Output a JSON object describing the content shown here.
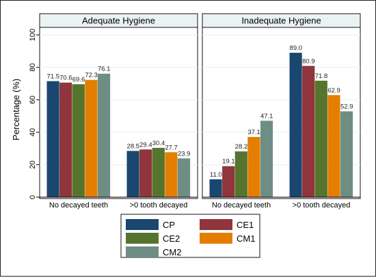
{
  "chart_data": {
    "type": "bar",
    "ylabel": "Percentage (%)",
    "ylim": [
      0,
      100
    ],
    "yticks": [
      0,
      20,
      40,
      60,
      80,
      100
    ],
    "grid": true,
    "legend_position": "bottom",
    "series_colors": {
      "CP": "#1a476f",
      "CE1": "#90353b",
      "CE2": "#55752f",
      "CM1": "#e37e00",
      "CM2": "#6e8e84"
    },
    "panels": [
      {
        "title": "Adequate Hygiene",
        "categories": [
          "No decayed teeth",
          ">0 tooth decayed"
        ],
        "series": [
          {
            "name": "CP",
            "values": [
              71.5,
              28.5
            ],
            "labels": [
              "71.5",
              "28.5"
            ]
          },
          {
            "name": "CE1",
            "values": [
              70.6,
              29.4
            ],
            "labels": [
              "70.6",
              "29.4"
            ]
          },
          {
            "name": "CE2",
            "values": [
              69.6,
              30.4
            ],
            "labels": [
              "69.6",
              "30.4"
            ]
          },
          {
            "name": "CM1",
            "values": [
              72.3,
              27.7
            ],
            "labels": [
              "72.3",
              "27.7"
            ]
          },
          {
            "name": "CM2",
            "values": [
              76.1,
              23.9
            ],
            "labels": [
              "76.1",
              "23.9"
            ]
          }
        ]
      },
      {
        "title": "Inadequate Hygiene",
        "categories": [
          "No decayed teeth",
          ">0 tooth decayed"
        ],
        "series": [
          {
            "name": "CP",
            "values": [
              11.0,
              89.0
            ],
            "labels": [
              "11.0",
              "89.0"
            ]
          },
          {
            "name": "CE1",
            "values": [
              19.1,
              80.9
            ],
            "labels": [
              "19.1",
              "80.9"
            ]
          },
          {
            "name": "CE2",
            "values": [
              28.2,
              71.8
            ],
            "labels": [
              "28.2",
              "71.8"
            ]
          },
          {
            "name": "CM1",
            "values": [
              37.1,
              62.9
            ],
            "labels": [
              "37.1",
              "62.9"
            ]
          },
          {
            "name": "CM2",
            "values": [
              47.1,
              52.9
            ],
            "labels": [
              "47.1",
              "52.9"
            ]
          }
        ]
      }
    ],
    "legend": [
      "CP",
      "CE1",
      "CE2",
      "CM1",
      "CM2"
    ]
  }
}
